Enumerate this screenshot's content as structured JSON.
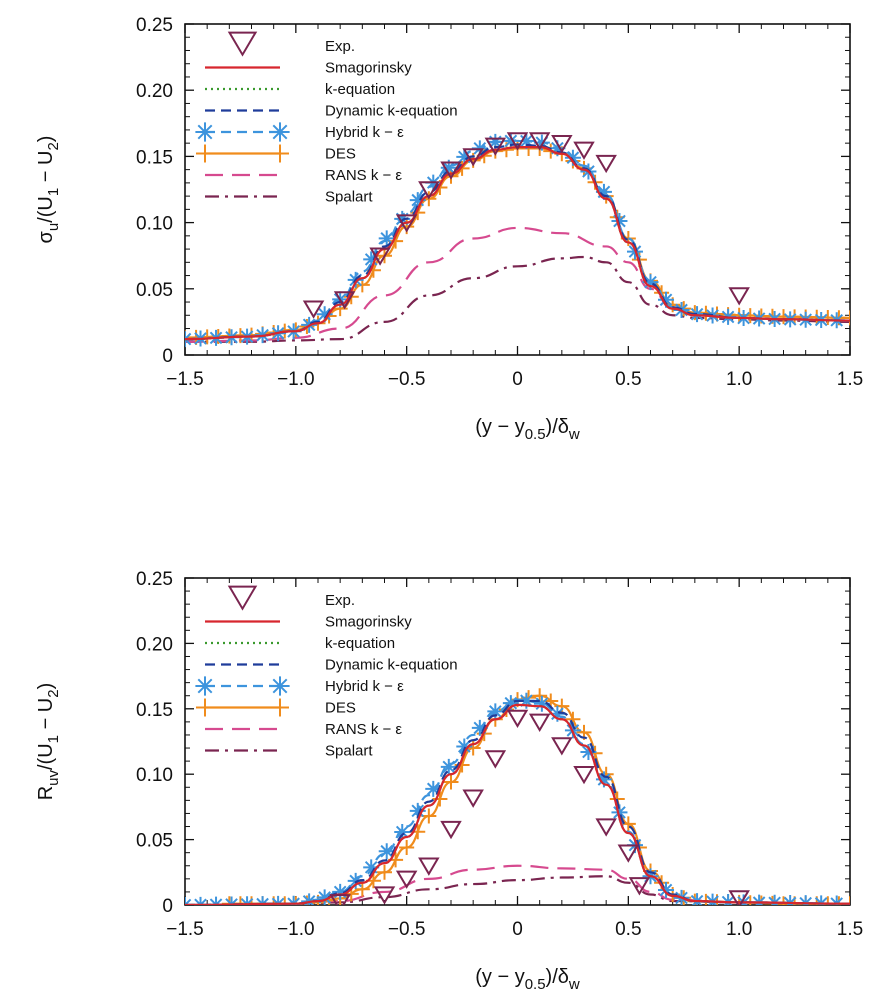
{
  "chart_data": [
    {
      "type": "line",
      "panel": "top",
      "ylabel": "σu/(U1 − U2)",
      "xlabel": "(y − y0.5)/δw",
      "xlim": [
        -1.5,
        1.5
      ],
      "ylim": [
        0,
        0.25
      ],
      "xticks": [
        "−1.5",
        "−1.0",
        "−0.5",
        "0",
        "0.5",
        "1.0",
        "1.5"
      ],
      "yticks": [
        "0",
        "0.05",
        "0.10",
        "0.15",
        "0.20",
        "0.25"
      ],
      "grid": false,
      "legend_position": "top-left",
      "series": [
        {
          "name": "Exp.",
          "style": "marker",
          "color": "#7a2550",
          "x": [
            -0.92,
            -0.78,
            -0.62,
            -0.5,
            -0.4,
            -0.3,
            -0.2,
            -0.1,
            0.0,
            0.1,
            0.2,
            0.3,
            0.4,
            1.0
          ],
          "y": [
            0.035,
            0.042,
            0.075,
            0.1,
            0.125,
            0.14,
            0.15,
            0.158,
            0.162,
            0.162,
            0.16,
            0.155,
            0.145,
            0.045
          ]
        },
        {
          "name": "Smagorinsky",
          "style": "solid",
          "color": "#d7262e",
          "x": [
            -1.5,
            -1.2,
            -1.0,
            -0.9,
            -0.8,
            -0.7,
            -0.6,
            -0.5,
            -0.4,
            -0.3,
            -0.2,
            -0.1,
            0,
            0.1,
            0.2,
            0.3,
            0.4,
            0.5,
            0.6,
            0.7,
            0.8,
            1.0,
            1.2,
            1.5
          ],
          "y": [
            0.012,
            0.014,
            0.018,
            0.024,
            0.038,
            0.058,
            0.08,
            0.1,
            0.12,
            0.137,
            0.148,
            0.155,
            0.157,
            0.157,
            0.152,
            0.14,
            0.118,
            0.085,
            0.052,
            0.035,
            0.03,
            0.028,
            0.027,
            0.026
          ]
        },
        {
          "name": "k-equation",
          "style": "dotted",
          "color": "#3a9a2e",
          "x": [
            -1.5,
            -1.2,
            -1.0,
            -0.9,
            -0.8,
            -0.7,
            -0.6,
            -0.5,
            -0.4,
            -0.3,
            -0.2,
            -0.1,
            0,
            0.1,
            0.2,
            0.3,
            0.4,
            0.5,
            0.6,
            0.7,
            0.8,
            1.0,
            1.2,
            1.5
          ],
          "y": [
            0.012,
            0.014,
            0.018,
            0.024,
            0.038,
            0.058,
            0.08,
            0.1,
            0.12,
            0.137,
            0.148,
            0.155,
            0.157,
            0.157,
            0.152,
            0.14,
            0.118,
            0.085,
            0.052,
            0.035,
            0.03,
            0.028,
            0.027,
            0.026
          ]
        },
        {
          "name": "Dynamic k-equation",
          "style": "dashed",
          "color": "#1f3c9a",
          "x": [
            -1.5,
            -1.2,
            -1.0,
            -0.9,
            -0.8,
            -0.7,
            -0.6,
            -0.5,
            -0.4,
            -0.3,
            -0.2,
            -0.1,
            0,
            0.1,
            0.2,
            0.3,
            0.4,
            0.5,
            0.6,
            0.7,
            0.8,
            1.0,
            1.2,
            1.5
          ],
          "y": [
            0.012,
            0.014,
            0.018,
            0.025,
            0.04,
            0.06,
            0.082,
            0.103,
            0.123,
            0.139,
            0.15,
            0.157,
            0.159,
            0.158,
            0.153,
            0.141,
            0.12,
            0.087,
            0.054,
            0.036,
            0.031,
            0.028,
            0.027,
            0.026
          ]
        },
        {
          "name": "Hybrid k − ε",
          "style": "dash-star",
          "color": "#3d94dd",
          "x": [
            -1.5,
            -1.2,
            -1.0,
            -0.9,
            -0.8,
            -0.7,
            -0.6,
            -0.5,
            -0.4,
            -0.3,
            -0.2,
            -0.1,
            0,
            0.1,
            0.2,
            0.3,
            0.4,
            0.5,
            0.6,
            0.7,
            0.8,
            1.0,
            1.2,
            1.5
          ],
          "y": [
            0.012,
            0.014,
            0.018,
            0.026,
            0.042,
            0.063,
            0.086,
            0.107,
            0.127,
            0.143,
            0.154,
            0.161,
            0.162,
            0.161,
            0.155,
            0.143,
            0.121,
            0.088,
            0.055,
            0.036,
            0.031,
            0.028,
            0.027,
            0.026
          ]
        },
        {
          "name": "DES",
          "style": "solid-plus",
          "color": "#f08c1c",
          "x": [
            -1.5,
            -1.2,
            -1.0,
            -0.9,
            -0.8,
            -0.7,
            -0.6,
            -0.5,
            -0.4,
            -0.3,
            -0.2,
            -0.1,
            0,
            0.1,
            0.2,
            0.3,
            0.4,
            0.5,
            0.6,
            0.7,
            0.8,
            1.0,
            1.2,
            1.5
          ],
          "y": [
            0.013,
            0.015,
            0.019,
            0.024,
            0.035,
            0.053,
            0.075,
            0.097,
            0.118,
            0.135,
            0.147,
            0.154,
            0.156,
            0.156,
            0.152,
            0.141,
            0.12,
            0.088,
            0.056,
            0.038,
            0.032,
            0.03,
            0.029,
            0.028
          ]
        },
        {
          "name": "RANS k − ε",
          "style": "long-dash",
          "color": "#d64a8f",
          "x": [
            -1.5,
            -1.2,
            -1.0,
            -0.8,
            -0.6,
            -0.4,
            -0.2,
            0,
            0.2,
            0.4,
            0.5,
            0.6,
            0.7,
            0.8,
            1.0,
            1.2,
            1.5
          ],
          "y": [
            0.01,
            0.011,
            0.013,
            0.02,
            0.045,
            0.07,
            0.088,
            0.096,
            0.092,
            0.082,
            0.07,
            0.05,
            0.035,
            0.03,
            0.028,
            0.027,
            0.026
          ]
        },
        {
          "name": "Spalart",
          "style": "dash-dot",
          "color": "#7a2550",
          "x": [
            -1.5,
            -1.2,
            -1.0,
            -0.8,
            -0.6,
            -0.4,
            -0.2,
            0,
            0.2,
            0.3,
            0.4,
            0.5,
            0.6,
            0.7,
            0.8,
            1.0,
            1.2,
            1.5
          ],
          "y": [
            0.01,
            0.01,
            0.011,
            0.012,
            0.025,
            0.045,
            0.058,
            0.067,
            0.073,
            0.074,
            0.07,
            0.055,
            0.038,
            0.03,
            0.028,
            0.027,
            0.026,
            0.025
          ]
        }
      ]
    },
    {
      "type": "line",
      "panel": "bottom",
      "ylabel": "Ruv/(U1 − U2)",
      "xlabel": "(y − y0.5)/δw",
      "xlim": [
        -1.5,
        1.5
      ],
      "ylim": [
        0,
        0.25
      ],
      "xticks": [
        "−1.5",
        "−1.0",
        "−0.5",
        "0",
        "0.5",
        "1.0",
        "1.5"
      ],
      "yticks": [
        "0",
        "0.05",
        "0.10",
        "0.15",
        "0.20",
        "0.25"
      ],
      "grid": false,
      "legend_position": "top-left",
      "series": [
        {
          "name": "Exp.",
          "style": "marker",
          "color": "#7a2550",
          "x": [
            -0.8,
            -0.6,
            -0.5,
            -0.4,
            -0.3,
            -0.2,
            -0.1,
            0.0,
            0.1,
            0.2,
            0.3,
            0.4,
            0.5,
            0.55,
            1.0
          ],
          "y": [
            0.002,
            0.008,
            0.02,
            0.03,
            0.058,
            0.082,
            0.112,
            0.143,
            0.14,
            0.122,
            0.1,
            0.06,
            0.04,
            0.015,
            0.005
          ]
        },
        {
          "name": "Smagorinsky",
          "style": "solid",
          "color": "#d7262e",
          "x": [
            -1.5,
            -1.0,
            -0.9,
            -0.8,
            -0.7,
            -0.6,
            -0.5,
            -0.4,
            -0.3,
            -0.2,
            -0.1,
            0,
            0.1,
            0.2,
            0.3,
            0.4,
            0.5,
            0.6,
            0.7,
            0.8,
            1.0,
            1.5
          ],
          "y": [
            0,
            0.001,
            0.003,
            0.008,
            0.017,
            0.032,
            0.052,
            0.076,
            0.1,
            0.123,
            0.142,
            0.153,
            0.152,
            0.142,
            0.122,
            0.092,
            0.055,
            0.022,
            0.007,
            0.003,
            0.002,
            0.001
          ]
        },
        {
          "name": "k-equation",
          "style": "dotted",
          "color": "#3a9a2e",
          "x": [
            -1.5,
            -1.0,
            -0.9,
            -0.8,
            -0.7,
            -0.6,
            -0.5,
            -0.4,
            -0.3,
            -0.2,
            -0.1,
            0,
            0.1,
            0.2,
            0.3,
            0.4,
            0.5,
            0.6,
            0.7,
            0.8,
            1.0,
            1.5
          ],
          "y": [
            0,
            0.001,
            0.003,
            0.008,
            0.017,
            0.032,
            0.052,
            0.076,
            0.1,
            0.123,
            0.142,
            0.153,
            0.152,
            0.142,
            0.122,
            0.092,
            0.055,
            0.022,
            0.007,
            0.003,
            0.002,
            0.001
          ]
        },
        {
          "name": "Dynamic k-equation",
          "style": "dashed",
          "color": "#1f3c9a",
          "x": [
            -1.5,
            -1.0,
            -0.9,
            -0.8,
            -0.7,
            -0.6,
            -0.5,
            -0.4,
            -0.3,
            -0.2,
            -0.1,
            0,
            0.1,
            0.2,
            0.3,
            0.4,
            0.5,
            0.6,
            0.7,
            0.8,
            1.0,
            1.5
          ],
          "y": [
            0,
            0.001,
            0.003,
            0.009,
            0.019,
            0.034,
            0.055,
            0.079,
            0.103,
            0.126,
            0.145,
            0.156,
            0.156,
            0.147,
            0.128,
            0.098,
            0.06,
            0.025,
            0.008,
            0.003,
            0.002,
            0.001
          ]
        },
        {
          "name": "Hybrid k − ε",
          "style": "dash-star",
          "color": "#3d94dd",
          "x": [
            -1.5,
            -1.0,
            -0.9,
            -0.8,
            -0.7,
            -0.6,
            -0.5,
            -0.4,
            -0.3,
            -0.2,
            -0.1,
            0,
            0.1,
            0.2,
            0.3,
            0.4,
            0.5,
            0.6,
            0.7,
            0.8,
            1.0,
            1.5
          ],
          "y": [
            0,
            0.001,
            0.004,
            0.01,
            0.022,
            0.039,
            0.06,
            0.084,
            0.108,
            0.13,
            0.148,
            0.157,
            0.155,
            0.144,
            0.123,
            0.093,
            0.056,
            0.022,
            0.007,
            0.003,
            0.002,
            0.001
          ]
        },
        {
          "name": "DES",
          "style": "solid-plus",
          "color": "#f08c1c",
          "x": [
            -1.3,
            -1.2,
            -1.1,
            -1.0,
            -0.9,
            -0.8,
            -0.7,
            -0.6,
            -0.5,
            -0.4,
            -0.3,
            -0.2,
            -0.1,
            0,
            0.1,
            0.2,
            0.3,
            0.4,
            0.5,
            0.6,
            0.7,
            0.8,
            1.0,
            1.2,
            1.5
          ],
          "y": [
            0.001,
            0.001,
            0.001,
            0.001,
            0.002,
            0.005,
            0.012,
            0.025,
            0.044,
            0.068,
            0.094,
            0.12,
            0.142,
            0.157,
            0.16,
            0.152,
            0.132,
            0.1,
            0.062,
            0.026,
            0.008,
            0.003,
            0.002,
            0.001,
            0.001
          ]
        },
        {
          "name": "RANS k − ε",
          "style": "long-dash",
          "color": "#d64a8f",
          "x": [
            -1.5,
            -1.0,
            -0.8,
            -0.6,
            -0.4,
            -0.2,
            0,
            0.2,
            0.4,
            0.5,
            0.6,
            0.7,
            1.0,
            1.5
          ],
          "y": [
            0,
            0.001,
            0.003,
            0.01,
            0.02,
            0.027,
            0.03,
            0.028,
            0.027,
            0.02,
            0.01,
            0.004,
            0.002,
            0.001
          ]
        },
        {
          "name": "Spalart",
          "style": "dash-dot",
          "color": "#7a2550",
          "x": [
            -1.5,
            -1.0,
            -0.8,
            -0.6,
            -0.4,
            -0.2,
            0,
            0.2,
            0.4,
            0.5,
            0.6,
            0.7,
            1.0,
            1.5
          ],
          "y": [
            0,
            0.001,
            0.002,
            0.006,
            0.012,
            0.016,
            0.019,
            0.021,
            0.022,
            0.017,
            0.008,
            0.003,
            0.002,
            0.001
          ]
        }
      ]
    }
  ]
}
